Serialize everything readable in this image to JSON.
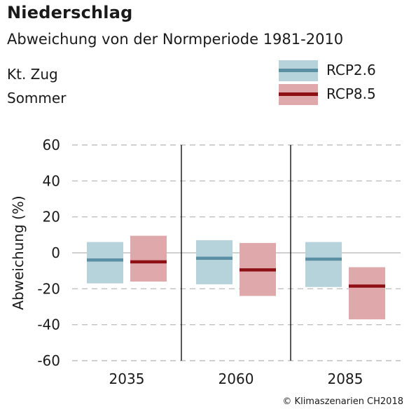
{
  "title": "Niederschlag",
  "subtitle": "Abweichung von der Normperiode 1981-2010",
  "region": "Kt. Zug",
  "season": "Sommer",
  "credit": "© Klimaszenarien CH2018",
  "colors": {
    "rcp26_box": "#b6d3dc",
    "rcp26_line": "#5b8fa3",
    "rcp85_box": "#dfa8ab",
    "rcp85_line": "#8e0f14",
    "grid": "#b5b5b5",
    "zero": "#b5b5b5",
    "divider": "#000000"
  },
  "legend": [
    {
      "label": "RCP2.6",
      "key": "rcp26"
    },
    {
      "label": "RCP8.5",
      "key": "rcp85"
    }
  ],
  "chart_data": {
    "type": "bar",
    "ylabel": "Abweichung (%)",
    "ylim": [
      -60,
      60
    ],
    "yticks": [
      60,
      40,
      20,
      0,
      -20,
      -40,
      -60
    ],
    "grid": true,
    "legend_position": "top-right",
    "categories": [
      "2035",
      "2060",
      "2085"
    ],
    "series": [
      {
        "name": "RCP2.6",
        "key": "rcp26",
        "low": [
          -17,
          -17.5,
          -19
        ],
        "median": [
          -4,
          -3,
          -3.5
        ],
        "high": [
          6,
          7,
          6
        ]
      },
      {
        "name": "RCP8.5",
        "key": "rcp85",
        "low": [
          -16,
          -24,
          -37
        ],
        "median": [
          -5,
          -9.5,
          -18.5
        ],
        "high": [
          9.5,
          5.5,
          -8
        ]
      }
    ]
  }
}
